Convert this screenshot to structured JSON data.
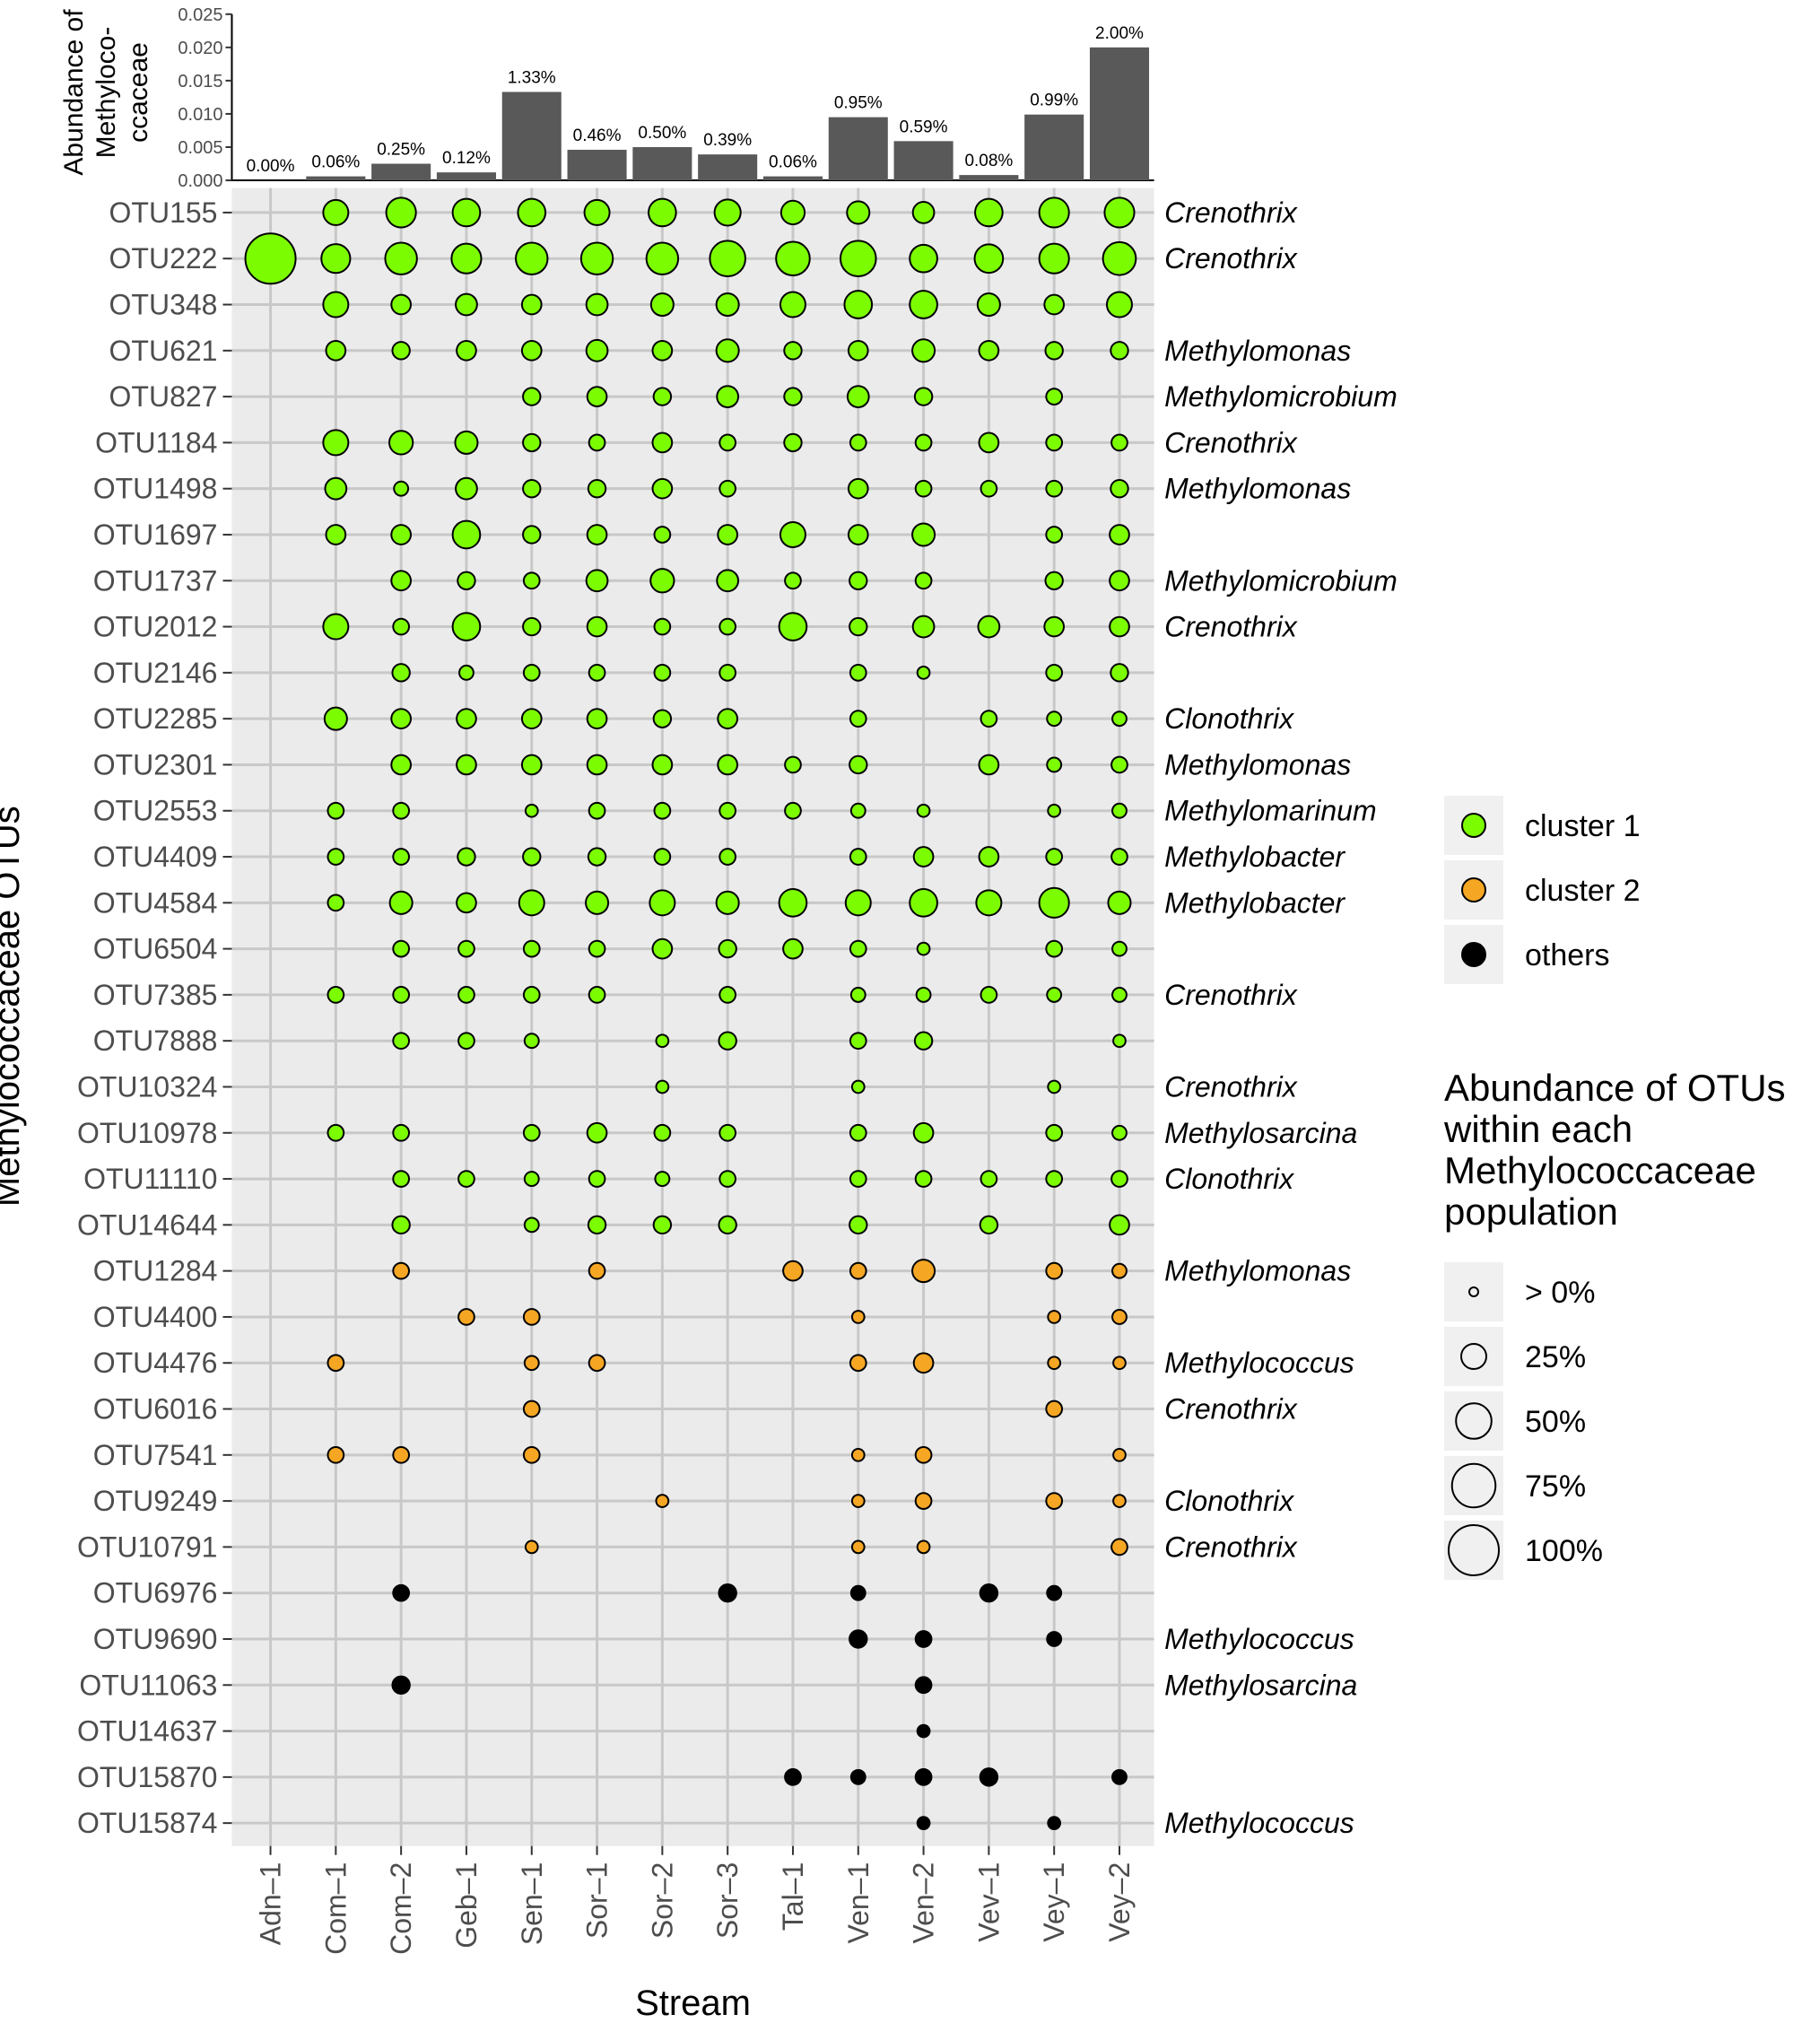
{
  "chart_data": [
    {
      "type": "bar",
      "ylabel_lines": [
        "Abundance of",
        "Methyloco-",
        "ccaceae"
      ],
      "ylim": [
        0,
        0.025
      ],
      "yticks": [
        "0.000",
        "0.005",
        "0.010",
        "0.015",
        "0.020",
        "0.025"
      ],
      "ytick_values": [
        0,
        0.005,
        0.01,
        0.015,
        0.02,
        0.025
      ],
      "categories": [
        "Adn–1",
        "Com–1",
        "Com–2",
        "Geb–1",
        "Sen–1",
        "Sor–1",
        "Sor–2",
        "Sor–3",
        "Tal–1",
        "Ven–1",
        "Ven–2",
        "Vev–1",
        "Vey–1",
        "Vey–2"
      ],
      "values": [
        0.0,
        0.0006,
        0.0025,
        0.0012,
        0.0133,
        0.0046,
        0.005,
        0.0039,
        0.0006,
        0.0095,
        0.0059,
        0.0008,
        0.0099,
        0.02
      ],
      "labels": [
        "0.00%",
        "0.06%",
        "0.25%",
        "0.12%",
        "1.33%",
        "0.46%",
        "0.50%",
        "0.39%",
        "0.06%",
        "0.95%",
        "0.59%",
        "0.08%",
        "0.99%",
        "2.00%"
      ],
      "bar_color": "#595959"
    },
    {
      "type": "scatter",
      "xlabel": "Stream",
      "ylabel": "Methylococcaceae OTUs",
      "x_categories": [
        "Adn–1",
        "Com–1",
        "Com–2",
        "Geb–1",
        "Sen–1",
        "Sor–1",
        "Sor–2",
        "Sor–3",
        "Tal–1",
        "Ven–1",
        "Ven–2",
        "Vev–1",
        "Vey–1",
        "Vey–2"
      ],
      "y_categories": [
        "OTU155",
        "OTU222",
        "OTU348",
        "OTU621",
        "OTU827",
        "OTU1184",
        "OTU1498",
        "OTU1697",
        "OTU1737",
        "OTU2012",
        "OTU2146",
        "OTU2285",
        "OTU2301",
        "OTU2553",
        "OTU4409",
        "OTU4584",
        "OTU6504",
        "OTU7385",
        "OTU7888",
        "OTU10324",
        "OTU10978",
        "OTU11110",
        "OTU14644",
        "OTU1284",
        "OTU4400",
        "OTU4476",
        "OTU6016",
        "OTU7541",
        "OTU9249",
        "OTU10791",
        "OTU6976",
        "OTU9690",
        "OTU11063",
        "OTU14637",
        "OTU15870",
        "OTU15874"
      ],
      "genus_labels": [
        "Crenothrix",
        "Crenothrix",
        "",
        "Methylomonas",
        "Methylomicrobium",
        "Crenothrix",
        "Methylomonas",
        "",
        "Methylomicrobium",
        "Crenothrix",
        "",
        "Clonothrix",
        "Methylomonas",
        "Methylomarinum",
        "Methylobacter",
        "Methylobacter",
        "",
        "Crenothrix",
        "",
        "Crenothrix",
        "Methylosarcina",
        "Clonothrix",
        "",
        "Methylomonas",
        "",
        "Methylococcus",
        "Crenothrix",
        "",
        "Clonothrix",
        "Crenothrix",
        "",
        "Methylococcus",
        "Methylosarcina",
        "",
        "",
        "Methylococcus"
      ],
      "cluster": [
        1,
        1,
        1,
        1,
        1,
        1,
        1,
        1,
        1,
        1,
        1,
        1,
        1,
        1,
        1,
        1,
        1,
        1,
        1,
        1,
        1,
        1,
        1,
        2,
        2,
        2,
        2,
        2,
        2,
        2,
        3,
        3,
        3,
        3,
        3,
        3
      ],
      "abundance_percent": [
        [
          0,
          25,
          35,
          30,
          30,
          25,
          30,
          27,
          22,
          20,
          18,
          30,
          35,
          35
        ],
        [
          100,
          33,
          40,
          35,
          40,
          40,
          40,
          50,
          45,
          50,
          30,
          32,
          35,
          43
        ],
        [
          0,
          25,
          15,
          18,
          15,
          18,
          20,
          20,
          25,
          30,
          30,
          20,
          15,
          25
        ],
        [
          0,
          15,
          12,
          15,
          15,
          18,
          15,
          20,
          12,
          15,
          20,
          15,
          12,
          12
        ],
        [
          0,
          0,
          0,
          0,
          12,
          15,
          12,
          18,
          12,
          18,
          12,
          0,
          10,
          0
        ],
        [
          0,
          25,
          22,
          20,
          12,
          10,
          15,
          10,
          12,
          10,
          10,
          15,
          10,
          10
        ],
        [
          0,
          18,
          8,
          18,
          12,
          12,
          15,
          10,
          0,
          15,
          10,
          10,
          10,
          12
        ],
        [
          0,
          15,
          15,
          30,
          12,
          15,
          10,
          15,
          25,
          15,
          20,
          0,
          10,
          15
        ],
        [
          0,
          0,
          15,
          12,
          10,
          18,
          22,
          18,
          10,
          12,
          10,
          0,
          12,
          15
        ],
        [
          0,
          25,
          10,
          30,
          12,
          15,
          10,
          10,
          30,
          12,
          18,
          18,
          15,
          15
        ],
        [
          0,
          0,
          12,
          8,
          10,
          10,
          10,
          10,
          0,
          10,
          6,
          0,
          10,
          12
        ],
        [
          0,
          20,
          15,
          15,
          15,
          15,
          12,
          15,
          0,
          10,
          0,
          10,
          8,
          8
        ],
        [
          0,
          0,
          15,
          15,
          15,
          15,
          15,
          15,
          10,
          12,
          0,
          15,
          8,
          10
        ],
        [
          0,
          10,
          10,
          0,
          6,
          10,
          10,
          10,
          10,
          8,
          6,
          0,
          6,
          8
        ],
        [
          0,
          10,
          10,
          12,
          12,
          12,
          10,
          10,
          0,
          10,
          15,
          15,
          10,
          10
        ],
        [
          0,
          10,
          20,
          15,
          25,
          20,
          25,
          20,
          30,
          25,
          30,
          25,
          35,
          20
        ],
        [
          0,
          0,
          10,
          10,
          10,
          10,
          15,
          12,
          15,
          10,
          6,
          0,
          10,
          8
        ],
        [
          0,
          10,
          10,
          10,
          10,
          10,
          0,
          10,
          0,
          8,
          8,
          10,
          8,
          8
        ],
        [
          0,
          0,
          10,
          10,
          8,
          0,
          6,
          12,
          0,
          10,
          12,
          0,
          0,
          6
        ],
        [
          0,
          0,
          0,
          0,
          0,
          0,
          6,
          0,
          0,
          6,
          0,
          0,
          6,
          0
        ],
        [
          0,
          10,
          10,
          0,
          10,
          15,
          10,
          10,
          0,
          10,
          15,
          0,
          10,
          8
        ],
        [
          0,
          0,
          10,
          10,
          8,
          10,
          8,
          10,
          0,
          10,
          10,
          10,
          10,
          10
        ],
        [
          0,
          0,
          12,
          0,
          8,
          12,
          12,
          12,
          0,
          12,
          0,
          12,
          0,
          15
        ],
        [
          0,
          0,
          10,
          0,
          0,
          10,
          0,
          0,
          15,
          10,
          20,
          0,
          10,
          8
        ],
        [
          0,
          0,
          0,
          10,
          10,
          0,
          0,
          0,
          0,
          6,
          0,
          0,
          6,
          8
        ],
        [
          0,
          10,
          0,
          0,
          8,
          10,
          0,
          0,
          0,
          10,
          15,
          0,
          6,
          6
        ],
        [
          0,
          0,
          0,
          0,
          10,
          0,
          0,
          0,
          0,
          0,
          0,
          0,
          10,
          0
        ],
        [
          0,
          10,
          10,
          0,
          10,
          0,
          0,
          0,
          0,
          6,
          10,
          0,
          0,
          6
        ],
        [
          0,
          0,
          0,
          0,
          0,
          0,
          6,
          0,
          0,
          6,
          10,
          0,
          10,
          6
        ],
        [
          0,
          0,
          0,
          0,
          6,
          0,
          0,
          0,
          0,
          6,
          6,
          0,
          0,
          10
        ],
        [
          0,
          0,
          10,
          0,
          0,
          0,
          0,
          12,
          0,
          8,
          0,
          12,
          8,
          0
        ],
        [
          0,
          0,
          0,
          0,
          0,
          0,
          0,
          0,
          0,
          12,
          10,
          0,
          8,
          0
        ],
        [
          0,
          0,
          12,
          0,
          0,
          0,
          0,
          0,
          0,
          0,
          10,
          0,
          0,
          0
        ],
        [
          0,
          0,
          0,
          0,
          0,
          0,
          0,
          0,
          0,
          0,
          6,
          0,
          0,
          0
        ],
        [
          0,
          0,
          0,
          0,
          0,
          0,
          0,
          0,
          10,
          8,
          10,
          12,
          0,
          8
        ],
        [
          0,
          0,
          0,
          0,
          0,
          0,
          0,
          0,
          0,
          0,
          6,
          0,
          6,
          0
        ]
      ],
      "legend_color": {
        "entries": [
          {
            "label": "cluster 1",
            "color": "#7CFC00"
          },
          {
            "label": "cluster 2",
            "color": "#F5A623"
          },
          {
            "label": "others",
            "color": "#000000"
          }
        ]
      },
      "legend_size": {
        "title_lines": [
          "Abundance of OTUs",
          "within each",
          "Methylococcaceae",
          "population"
        ],
        "entries": [
          {
            "label": "> 0%",
            "value": 3
          },
          {
            "label": "25%",
            "value": 25
          },
          {
            "label": "50%",
            "value": 50
          },
          {
            "label": "75%",
            "value": 75
          },
          {
            "label": "100%",
            "value": 100
          }
        ]
      },
      "panel_background": "#EBEBEB",
      "grid_color": "#C8C8C8",
      "legend_placement": "right"
    }
  ]
}
